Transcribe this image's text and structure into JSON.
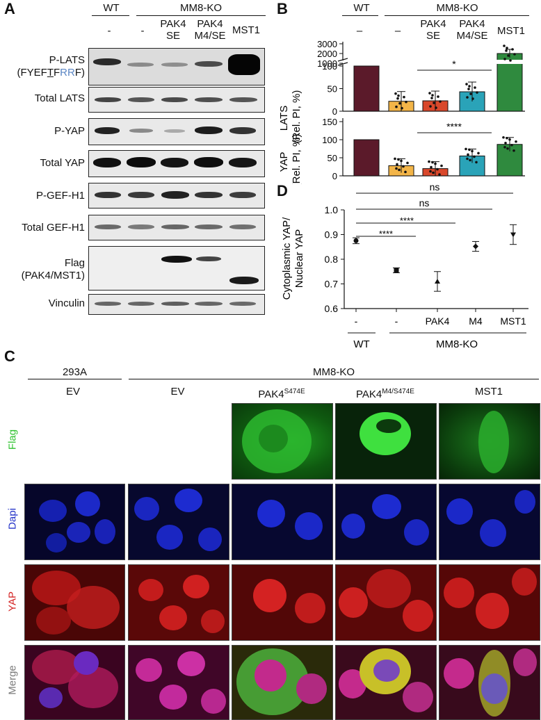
{
  "panel_a": {
    "letter": "A",
    "group_wt": "WT",
    "group_ko": "MM8-KO",
    "lanes": [
      "-",
      "-",
      "PAK4\nSE",
      "PAK4\nM4/SE",
      "MST1"
    ],
    "blots": [
      {
        "label": "P-LATS",
        "sublabel_pre": "(FYEF",
        "sublabel_t1": "T",
        "sublabel_t2": "F",
        "sublabel_rr": "RR",
        "sublabel_post": "F)"
      },
      {
        "label": "Total LATS"
      },
      {
        "label": "P-YAP"
      },
      {
        "label": "Total YAP"
      },
      {
        "label": "P-GEF-H1"
      },
      {
        "label": "Total GEF-H1"
      },
      {
        "label": "Flag\n(PAK4/MST1)"
      },
      {
        "label": "Vinculin"
      }
    ]
  },
  "panel_b": {
    "letter": "B",
    "group_wt": "WT",
    "group_ko": "MM8-KO",
    "lanes": [
      "–",
      "–",
      "PAK4\nSE",
      "PAK4\nM4/SE",
      "MST1"
    ],
    "top_ylabel_1": "LATS",
    "top_ylabel_2": "(Rel. PI, %)",
    "bottom_ylabel_1": "YAP",
    "bottom_ylabel_2": "(Rel. PI, %)",
    "top_ticks_upper": [
      "3000",
      "2000",
      "1000"
    ],
    "top_ticks_lower": [
      "100",
      "50",
      "0"
    ],
    "bottom_ticks": [
      "150",
      "100",
      "50",
      "0"
    ],
    "sig_top": "*",
    "sig_bottom": "****",
    "colors": [
      "#5b1a2a",
      "#f3b548",
      "#d9482b",
      "#2aa3b8",
      "#2f8a3e"
    ]
  },
  "panel_d": {
    "letter": "D",
    "ylabel_1": "Cytoplasmic YAP/",
    "ylabel_2": "Nuclear YAP",
    "yticks": [
      "1.0",
      "0.9",
      "0.8",
      "0.7",
      "0.6"
    ],
    "xticks": [
      "-",
      "-",
      "PAK4",
      "M4",
      "MST1"
    ],
    "group_wt": "WT",
    "group_ko": "MM8-KO",
    "sig_1": "ns",
    "sig_2": "ns",
    "sig_3": "****",
    "sig_4": "****"
  },
  "panel_c": {
    "letter": "C",
    "group_293a": "293A",
    "group_ko": "MM8-KO",
    "col_ev1": "EV",
    "col_ev2": "EV",
    "col_pak4": "PAK4",
    "col_pak4_sup": "S474E",
    "col_pak4m": "PAK4",
    "col_pak4m_sup": "M4/S474E",
    "col_mst1": "MST1",
    "row_flag": "Flag",
    "row_dapi": "Dapi",
    "row_yap": "YAP",
    "row_merge": "Merge",
    "flag_color": "#2ec22e",
    "dapi_color": "#2433c8",
    "yap_color": "#d42222",
    "merge_color": "#7a7a7a"
  },
  "chart_data": [
    {
      "type": "bar",
      "title": "",
      "ylabel": "LATS (Rel. PI, %)",
      "categories": [
        "WT -",
        "MM8-KO -",
        "PAK4 SE",
        "PAK4 M4/SE",
        "MST1"
      ],
      "values": [
        100,
        22,
        23,
        43,
        2000
      ],
      "ylim": [
        0,
        3000
      ],
      "broken_axis": true
    },
    {
      "type": "bar",
      "title": "",
      "ylabel": "YAP (Rel. PI, %)",
      "categories": [
        "WT -",
        "MM8-KO -",
        "PAK4 SE",
        "PAK4 M4/SE",
        "MST1"
      ],
      "values": [
        100,
        28,
        20,
        55,
        87
      ],
      "ylim": [
        0,
        150
      ]
    },
    {
      "type": "scatter",
      "title": "",
      "ylabel": "Cytoplasmic YAP/ Nuclear YAP",
      "categories": [
        "WT -",
        "MM8-KO -",
        "PAK4",
        "M4",
        "MST1"
      ],
      "values": [
        0.875,
        0.755,
        0.71,
        0.852,
        0.9
      ],
      "errors": [
        0.012,
        0.01,
        0.04,
        0.02,
        0.04
      ],
      "ylim": [
        0.6,
        1.0
      ]
    }
  ]
}
